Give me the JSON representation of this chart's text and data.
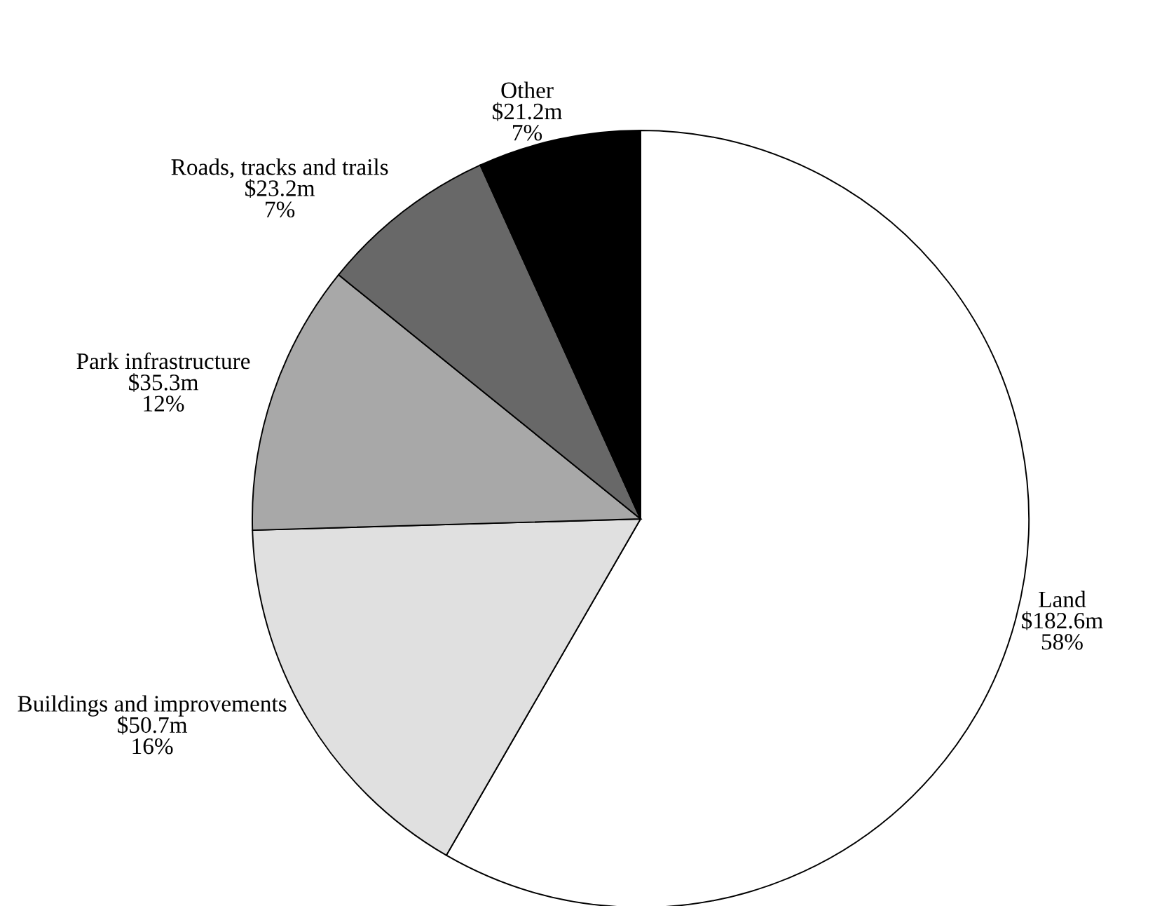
{
  "chart_data": {
    "type": "pie",
    "categories": [
      "Land",
      "Buildings and improvements",
      "Park infrastructure",
      "Roads, tracks and trails",
      "Other"
    ],
    "values": [
      182.6,
      50.7,
      35.3,
      23.2,
      21.2
    ],
    "colors": [
      "#ffffff",
      "#e0e0e0",
      "#a8a8a8",
      "#686868",
      "#000000"
    ],
    "value_labels": [
      "$182.6m",
      "$50.7m",
      "$35.3m",
      "$23.2m",
      "$21.2m"
    ],
    "annotations": [
      "58%",
      "16%",
      "12%",
      "7%",
      "7%"
    ]
  }
}
